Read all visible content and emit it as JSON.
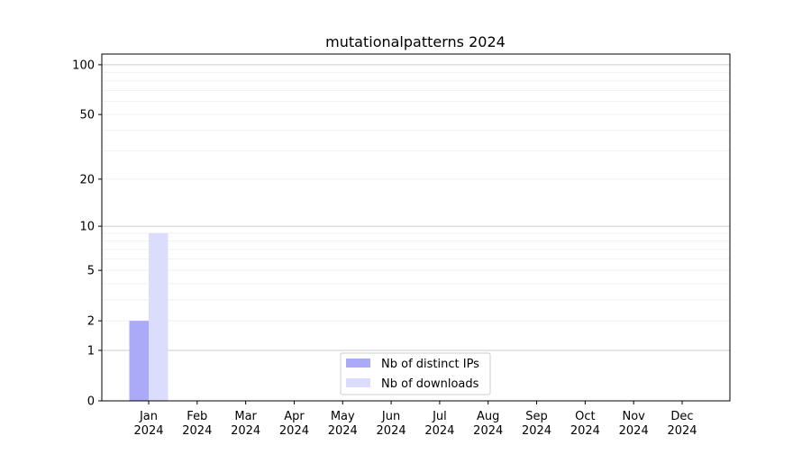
{
  "chart_data": {
    "type": "bar",
    "title": "mutationalpatterns 2024",
    "xlabel": "",
    "ylabel": "",
    "y_scale": "log(1+y)",
    "ylim": [
      0,
      116
    ],
    "yticks": [
      0,
      1,
      2,
      5,
      10,
      20,
      50,
      100
    ],
    "grid": true,
    "legend_placement": "bottom-center",
    "categories": [
      "Jan\n2024",
      "Feb\n2024",
      "Mar\n2024",
      "Apr\n2024",
      "May\n2024",
      "Jun\n2024",
      "Jul\n2024",
      "Aug\n2024",
      "Sep\n2024",
      "Oct\n2024",
      "Nov\n2024",
      "Dec\n2024"
    ],
    "series": [
      {
        "name": "Nb of distinct IPs",
        "color": "#aaaaf8",
        "values": [
          2,
          0,
          0,
          0,
          0,
          0,
          0,
          0,
          0,
          0,
          0,
          0
        ]
      },
      {
        "name": "Nb of downloads",
        "color": "#dcdcfc",
        "values": [
          9,
          0,
          0,
          0,
          0,
          0,
          0,
          0,
          0,
          0,
          0,
          0
        ]
      }
    ]
  }
}
